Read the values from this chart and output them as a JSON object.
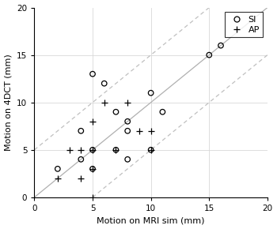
{
  "SI_x": [
    2,
    4,
    4,
    5,
    5,
    5,
    6,
    7,
    7,
    8,
    8,
    8,
    10,
    10,
    11,
    15,
    16
  ],
  "SI_y": [
    3,
    7,
    4,
    13,
    5,
    3,
    12,
    9,
    5,
    8,
    7,
    4,
    5,
    11,
    9,
    15,
    16
  ],
  "AP_x": [
    2,
    3,
    4,
    4,
    5,
    5,
    5,
    5,
    6,
    7,
    8,
    9,
    10,
    10
  ],
  "AP_y": [
    2,
    5,
    5,
    2,
    0,
    5,
    3,
    8,
    10,
    5,
    10,
    7,
    5,
    7
  ],
  "xlim": [
    0,
    20
  ],
  "ylim": [
    0,
    20
  ],
  "xticks": [
    0,
    5,
    10,
    15,
    20
  ],
  "yticks": [
    0,
    5,
    10,
    15,
    20
  ],
  "xlabel": "Motion on MRI sim (mm)",
  "ylabel": "Motion on 4DCT (mm)",
  "identity_color": "#b0b0b0",
  "dashed_color": "#c0c0c0",
  "grid_color": "#d8d8d8",
  "marker_color": "black",
  "bg_color": "white",
  "legend_SI": "SI",
  "legend_AP": "AP"
}
